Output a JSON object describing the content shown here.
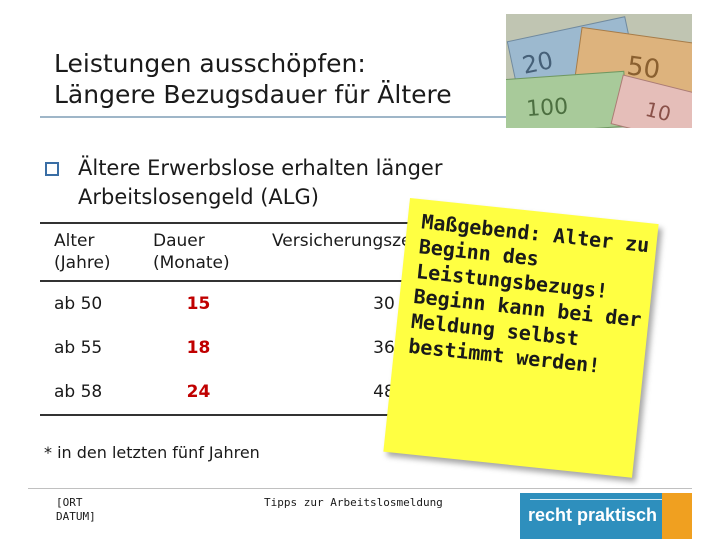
{
  "slide": {
    "title_line1": "Leistungen ausschöpfen:",
    "title_line2": "Längere Bezugsdauer für Ältere",
    "bullet_text": "Ältere Erwerbslose erhalten länger Arbeitslosengeld (ALG)",
    "photo_icon": "euro-banknotes-icon",
    "footnote": "* in den letzten fünf Jahren"
  },
  "table": {
    "headers": [
      "Alter (Jahre)",
      "Dauer (Monate)",
      "Versicherungszeit (Monate)"
    ],
    "rows": [
      [
        "ab 50",
        "15",
        "30"
      ],
      [
        "ab 55",
        "18",
        "36"
      ],
      [
        "ab 58",
        "24",
        "48"
      ]
    ]
  },
  "sticky_note": {
    "text": "Maßgebend: Alter zu Beginn des Leistungsbezugs! Beginn kann bei der Meldung selbst bestimmt werden!"
  },
  "footer": {
    "date_placeholder": "[ORT DATUM]",
    "center_text": "Tipps zur Arbeitslosmeldung",
    "logo_text": "recht praktisch"
  },
  "colors": {
    "accent_red": "#c00000",
    "note_yellow": "#ffff42",
    "bullet_blue": "#3a6ea5",
    "logo_blue": "#2e8fbd"
  }
}
